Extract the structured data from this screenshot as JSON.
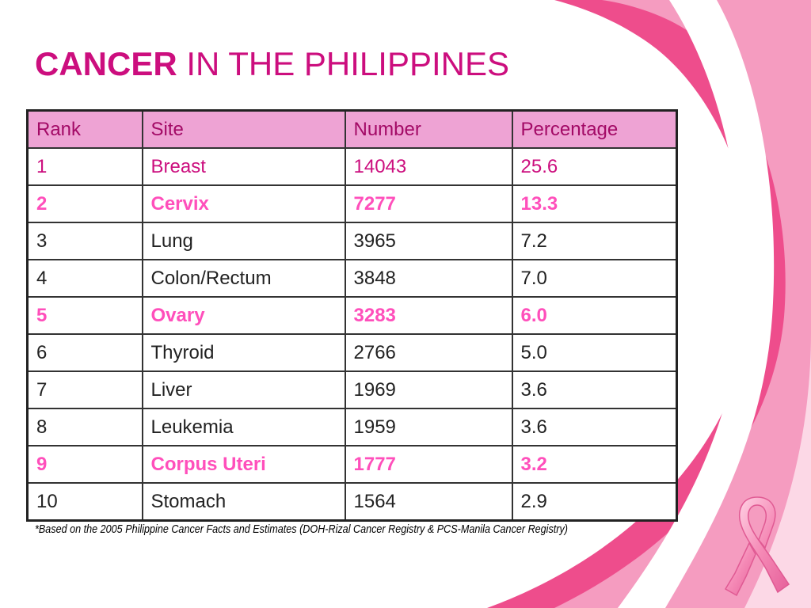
{
  "title": {
    "bold": "CANCER",
    "rest": " IN THE PHILIPPINES"
  },
  "table": {
    "headers": [
      "Rank",
      "Site",
      "Number",
      "Percentage"
    ],
    "rows": [
      {
        "rank": "1",
        "site": "Breast",
        "number": "14043",
        "percentage": "25.6"
      },
      {
        "rank": "2",
        "site": "Cervix",
        "number": "7277",
        "percentage": "13.3"
      },
      {
        "rank": "3",
        "site": "Lung",
        "number": "3965",
        "percentage": "7.2"
      },
      {
        "rank": "4",
        "site": "Colon/Rectum",
        "number": "3848",
        "percentage": "7.0"
      },
      {
        "rank": "5",
        "site": "Ovary",
        "number": "3283",
        "percentage": "6.0"
      },
      {
        "rank": "6",
        "site": "Thyroid",
        "number": "2766",
        "percentage": "5.0"
      },
      {
        "rank": "7",
        "site": "Liver",
        "number": "1969",
        "percentage": "3.6"
      },
      {
        "rank": "8",
        "site": "Leukemia",
        "number": "1959",
        "percentage": "3.6"
      },
      {
        "rank": "9",
        "site": "Corpus Uteri",
        "number": "1777",
        "percentage": "3.2"
      },
      {
        "rank": "10",
        "site": "Stomach",
        "number": "1564",
        "percentage": "2.9"
      }
    ]
  },
  "footnote": "*Based on the 2005 Philippine Cancer Facts and Estimates (DOH-Rizal Cancer Registry & PCS-Manila Cancer Registry)",
  "colors": {
    "title": "#cc0e7e",
    "header_bg": "#eea3d4",
    "highlight_text": "#ff4fbb",
    "swoosh_dark": "#ee4d8c",
    "swoosh_light": "#f7a8c8"
  },
  "icons": {
    "ribbon": "pink-ribbon-icon"
  }
}
